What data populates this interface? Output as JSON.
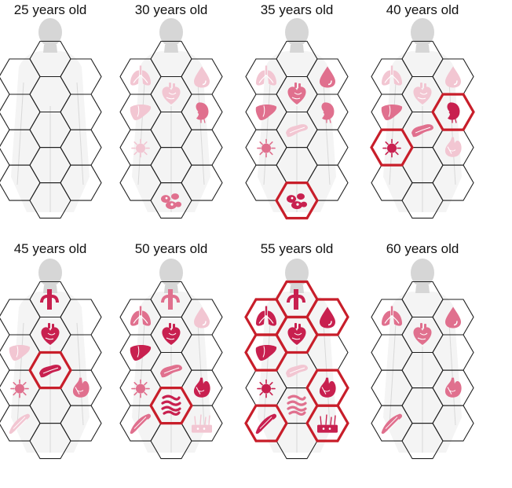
{
  "colors": {
    "hex_stroke": "#1f1f1f",
    "highlight_stroke": "#c81e2a",
    "organ_strong": "#c8204f",
    "organ_medium": "#e0708e",
    "organ_faint": "#f2c6d2",
    "body_silhouette": "#d6d6d6"
  },
  "panels": [
    {
      "title": "25 years old",
      "organs": []
    },
    {
      "title": "30 years old",
      "organs": [
        {
          "icon": "lungs-icon",
          "cell": "lungs",
          "shade": "faint"
        },
        {
          "icon": "heart-icon",
          "cell": "heart",
          "shade": "faint"
        },
        {
          "icon": "blood-drop-icon",
          "cell": "blood",
          "shade": "faint"
        },
        {
          "icon": "liver-icon",
          "cell": "liver",
          "shade": "faint"
        },
        {
          "icon": "kidney-icon",
          "cell": "kidney",
          "shade": "medium"
        },
        {
          "icon": "thyroid-icon",
          "cell": "thyroid",
          "shade": "faint"
        },
        {
          "icon": "ovary-icon",
          "cell": "ovary",
          "shade": "medium"
        }
      ]
    },
    {
      "title": "35 years old",
      "organs": [
        {
          "icon": "lungs-icon",
          "cell": "lungs",
          "shade": "faint"
        },
        {
          "icon": "heart-icon",
          "cell": "heart",
          "shade": "medium"
        },
        {
          "icon": "blood-drop-icon",
          "cell": "blood",
          "shade": "medium"
        },
        {
          "icon": "liver-icon",
          "cell": "liver",
          "shade": "medium"
        },
        {
          "icon": "pancreas-icon",
          "cell": "pancreas",
          "shade": "faint"
        },
        {
          "icon": "kidney-icon",
          "cell": "kidney",
          "shade": "medium"
        },
        {
          "icon": "thyroid-icon",
          "cell": "thyroid",
          "shade": "medium"
        },
        {
          "icon": "ovary-icon",
          "cell": "ovary",
          "shade": "strong",
          "highlight": true
        }
      ]
    },
    {
      "title": "40 years old",
      "organs": [
        {
          "icon": "lungs-icon",
          "cell": "lungs",
          "shade": "faint"
        },
        {
          "icon": "heart-icon",
          "cell": "heart",
          "shade": "faint"
        },
        {
          "icon": "blood-drop-icon",
          "cell": "blood",
          "shade": "faint"
        },
        {
          "icon": "liver-icon",
          "cell": "liver",
          "shade": "medium"
        },
        {
          "icon": "pancreas-icon",
          "cell": "pancreas",
          "shade": "medium"
        },
        {
          "icon": "kidney-icon",
          "cell": "kidney",
          "shade": "strong",
          "highlight": true
        },
        {
          "icon": "thyroid-icon",
          "cell": "thyroid",
          "shade": "strong",
          "highlight": true
        },
        {
          "icon": "stomach-icon",
          "cell": "stomach",
          "shade": "faint"
        }
      ]
    },
    {
      "title": "45 years old",
      "organs": [
        {
          "icon": "artery-icon",
          "cell": "artery",
          "shade": "strong"
        },
        {
          "icon": "heart-icon",
          "cell": "heart",
          "shade": "strong"
        },
        {
          "icon": "liver-icon",
          "cell": "liver",
          "shade": "faint"
        },
        {
          "icon": "pancreas-icon",
          "cell": "pancreas",
          "shade": "strong",
          "highlight": true
        },
        {
          "icon": "thyroid-icon",
          "cell": "thyroid",
          "shade": "medium"
        },
        {
          "icon": "stomach-icon",
          "cell": "stomach",
          "shade": "medium"
        },
        {
          "icon": "muscle-icon",
          "cell": "muscle",
          "shade": "faint"
        }
      ]
    },
    {
      "title": "50 years old",
      "organs": [
        {
          "icon": "artery-icon",
          "cell": "artery",
          "shade": "medium"
        },
        {
          "icon": "lungs-icon",
          "cell": "lungs",
          "shade": "medium"
        },
        {
          "icon": "heart-icon",
          "cell": "heart",
          "shade": "strong"
        },
        {
          "icon": "blood-drop-icon",
          "cell": "blood",
          "shade": "faint"
        },
        {
          "icon": "liver-icon",
          "cell": "liver",
          "shade": "strong"
        },
        {
          "icon": "pancreas-icon",
          "cell": "pancreas",
          "shade": "medium"
        },
        {
          "icon": "thyroid-icon",
          "cell": "thyroid",
          "shade": "medium"
        },
        {
          "icon": "stomach-icon",
          "cell": "stomach",
          "shade": "strong"
        },
        {
          "icon": "intestine-icon",
          "cell": "intestine",
          "shade": "strong",
          "highlight": true
        },
        {
          "icon": "muscle-icon",
          "cell": "muscle",
          "shade": "medium"
        },
        {
          "icon": "skin-icon",
          "cell": "skin",
          "shade": "faint"
        }
      ]
    },
    {
      "title": "55 years old",
      "organs": [
        {
          "icon": "artery-icon",
          "cell": "artery",
          "shade": "strong",
          "highlight": true
        },
        {
          "icon": "lungs-icon",
          "cell": "lungs",
          "shade": "strong",
          "highlight": true
        },
        {
          "icon": "heart-icon",
          "cell": "heart",
          "shade": "strong",
          "highlight": true
        },
        {
          "icon": "blood-drop-icon",
          "cell": "blood",
          "shade": "strong",
          "highlight": true
        },
        {
          "icon": "liver-icon",
          "cell": "liver",
          "shade": "strong",
          "highlight": true
        },
        {
          "icon": "pancreas-icon",
          "cell": "pancreas",
          "shade": "faint"
        },
        {
          "icon": "thyroid-icon",
          "cell": "thyroid",
          "shade": "strong"
        },
        {
          "icon": "stomach-icon",
          "cell": "stomach",
          "shade": "strong",
          "highlight": true
        },
        {
          "icon": "intestine-icon",
          "cell": "intestine",
          "shade": "medium"
        },
        {
          "icon": "muscle-icon",
          "cell": "muscle",
          "shade": "strong",
          "highlight": true
        },
        {
          "icon": "skin-icon",
          "cell": "skin",
          "shade": "strong",
          "highlight": true
        }
      ]
    },
    {
      "title": "60 years old",
      "organs": [
        {
          "icon": "lungs-icon",
          "cell": "lungs",
          "shade": "medium"
        },
        {
          "icon": "heart-icon",
          "cell": "heart",
          "shade": "medium"
        },
        {
          "icon": "blood-drop-icon",
          "cell": "blood",
          "shade": "medium"
        },
        {
          "icon": "stomach-icon",
          "cell": "stomach",
          "shade": "medium"
        },
        {
          "icon": "muscle-icon",
          "cell": "muscle",
          "shade": "medium"
        }
      ]
    }
  ]
}
